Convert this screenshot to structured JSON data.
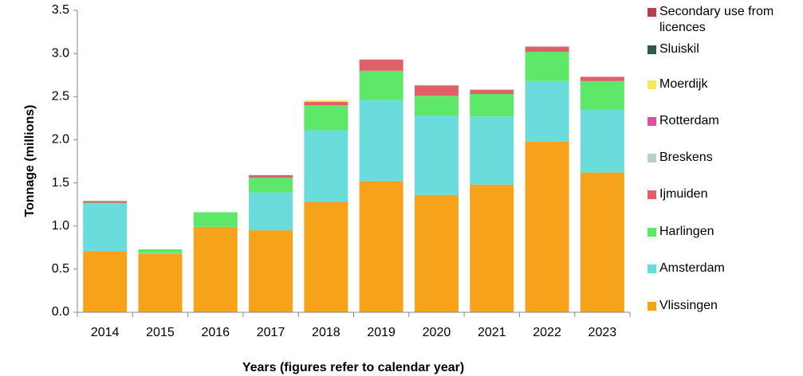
{
  "chart_data": {
    "type": "stacked_bar",
    "x_label": "Years (figures refer to calendar year)",
    "y_label": "Tonnage (millions)",
    "categories": [
      "2014",
      "2015",
      "2016",
      "2017",
      "2018",
      "2019",
      "2020",
      "2021",
      "2022",
      "2023"
    ],
    "ylim": [
      0,
      3.5
    ],
    "yticks": [
      {
        "value": 0,
        "label": "0.0"
      },
      0.5,
      {
        "value": 1,
        "label": "1.0"
      },
      1.5,
      {
        "value": 2,
        "label": "2.0"
      },
      2.5,
      {
        "value": 3,
        "label": "3.0"
      },
      3.5
    ],
    "grid": false,
    "legend": "right",
    "series": [
      {
        "name": "Vlissingen",
        "color": "#f7a21b",
        "values": [
          0.71,
          0.68,
          0.99,
          0.95,
          1.28,
          1.52,
          1.36,
          1.48,
          1.98,
          1.62
        ]
      },
      {
        "name": "Amsterdam",
        "color": "#6adcdc",
        "values": [
          0.55,
          0.01,
          0,
          0.44,
          0.83,
          0.94,
          0.92,
          0.79,
          0.7,
          0.73
        ]
      },
      {
        "name": "Harlingen",
        "color": "#5ee86a",
        "values": [
          0.01,
          0.04,
          0.17,
          0.17,
          0.29,
          0.34,
          0.23,
          0.26,
          0.34,
          0.33
        ]
      },
      {
        "name": "Ijmuiden",
        "color": "#e0606a",
        "values": [
          0.02,
          0,
          0,
          0.03,
          0.04,
          0.13,
          0.12,
          0.05,
          0.06,
          0.05
        ]
      },
      {
        "name": "Breskens",
        "color": "#b8d0cc",
        "values": [
          0,
          0,
          0,
          0,
          0,
          0,
          0,
          0,
          0,
          0
        ]
      },
      {
        "name": "Rotterdam",
        "color": "#e0509a",
        "values": [
          0,
          0,
          0,
          0,
          0,
          0,
          0,
          0,
          0,
          0
        ]
      },
      {
        "name": "Moerdijk",
        "color": "#f5e85a",
        "values": [
          0,
          0,
          0,
          0,
          0.02,
          0,
          0,
          0,
          0,
          0
        ]
      },
      {
        "name": "Sluiskil",
        "color": "#2e5a44",
        "values": [
          0,
          0,
          0,
          0,
          0,
          0,
          0,
          0,
          0,
          0
        ]
      },
      {
        "name": "Secondary use from licences",
        "color": "#b5414b",
        "values": [
          0,
          0,
          0,
          0,
          0,
          0,
          0,
          0,
          0,
          0
        ]
      }
    ]
  }
}
